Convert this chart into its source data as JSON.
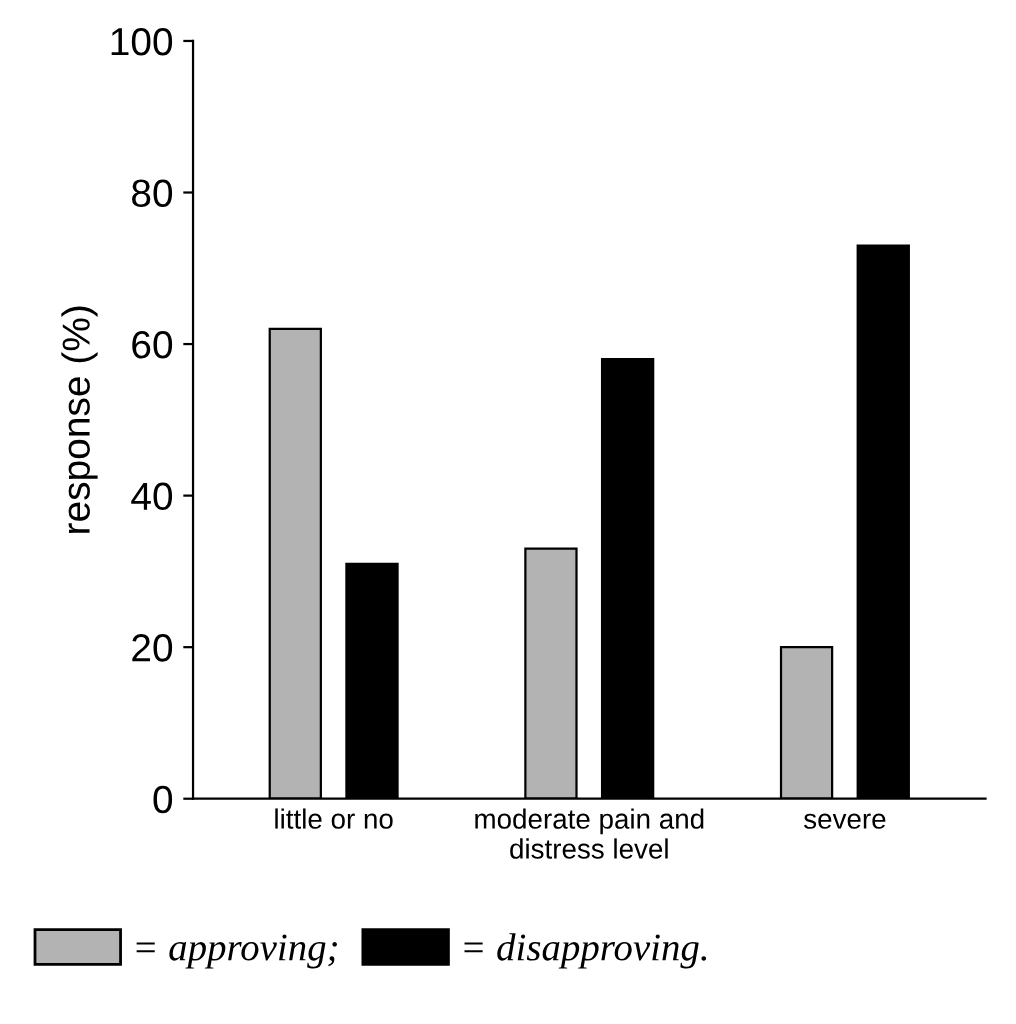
{
  "chart_data": {
    "type": "bar",
    "ylabel": "response (%)",
    "categories": [
      "little or no",
      "moderate pain and\ndistress level",
      "severe"
    ],
    "series": [
      {
        "name": "= approving;",
        "color": "#b3b3b3",
        "values": [
          62,
          33,
          20
        ]
      },
      {
        "name": "= disapproving.",
        "color": "#000000",
        "values": [
          31,
          58,
          73
        ]
      }
    ],
    "ylim": [
      0,
      100
    ],
    "yticks": [
      0,
      20,
      40,
      60,
      80,
      100
    ],
    "grid": false,
    "legend": "bottom"
  }
}
